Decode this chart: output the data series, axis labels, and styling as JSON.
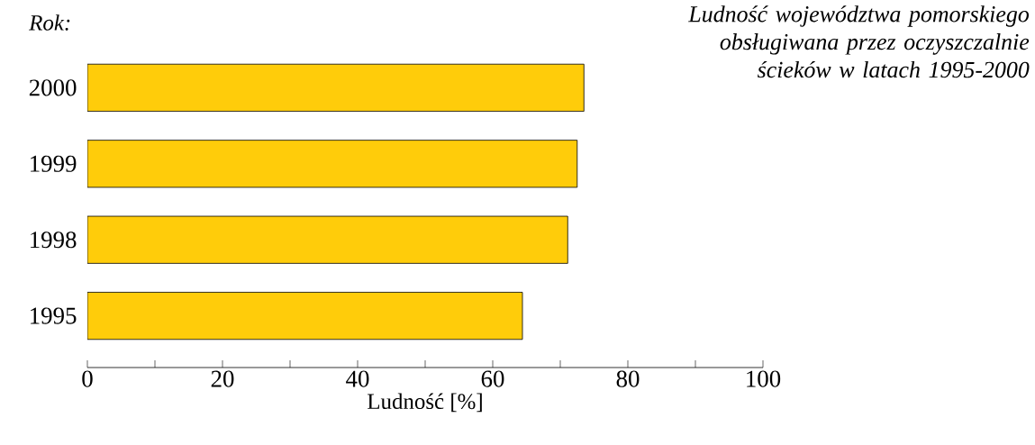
{
  "chart_data": {
    "type": "bar",
    "orientation": "horizontal",
    "title": "Ludność województwa pomorskiego obsługiwana przez oczyszczalnie ścieków w latach 1995-2000",
    "ylabel": "Rok:",
    "xlabel": "Ludność [%]",
    "categories": [
      "2000",
      "1999",
      "1998",
      "1995"
    ],
    "values": [
      73.5,
      72.5,
      71.1,
      64.4
    ],
    "color": "#ffcc0a",
    "xlim": [
      0,
      100
    ],
    "xticks": [
      0,
      {
        "value": 10,
        "label": null
      },
      20,
      {
        "value": 30,
        "label": null
      },
      40,
      {
        "value": 50,
        "label": null
      },
      60,
      {
        "value": 70,
        "label": null
      },
      80,
      {
        "value": 90,
        "label": null
      },
      100
    ]
  }
}
